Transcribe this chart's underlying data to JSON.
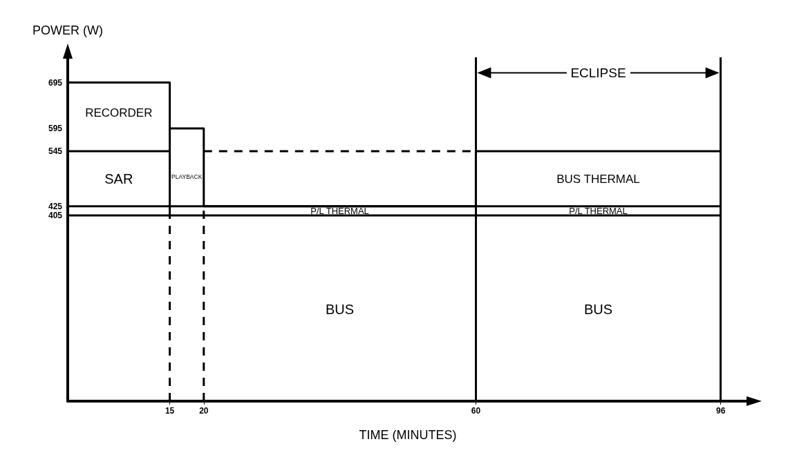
{
  "chart_data": {
    "type": "line",
    "xlabel": "TIME (MINUTES)",
    "ylabel": "POWER (W)",
    "xlim": [
      0,
      100
    ],
    "xticks": [
      15,
      20,
      60,
      96
    ],
    "ylim": [
      0,
      750
    ],
    "yticks": [
      405,
      425,
      545,
      595,
      695
    ],
    "grid": false,
    "marker": "none",
    "series": [
      {
        "type": "step",
        "color": "#000000",
        "x": [
          0,
          15,
          20,
          60,
          96
        ],
        "values": [
          695,
          595,
          425,
          545,
          545
        ]
      },
      {
        "type": "line",
        "color": "#000000",
        "x": [
          15,
          15
        ],
        "values": [
          405,
          595
        ]
      },
      {
        "type": "line",
        "color": "#000000",
        "x": [
          0,
          15
        ],
        "values": [
          545,
          545
        ]
      },
      {
        "type": "line",
        "color": "#000000",
        "x": [
          0,
          96
        ],
        "values": [
          425,
          425
        ]
      },
      {
        "type": "line",
        "color": "#000000",
        "x": [
          0,
          96
        ],
        "values": [
          405,
          405
        ]
      },
      {
        "type": "line",
        "color": "#000000",
        "line_style": "dashed",
        "x": [
          20,
          60
        ],
        "values": [
          545,
          545
        ]
      },
      {
        "type": "line",
        "color": "#000000",
        "line_style": "dashed",
        "x": [
          15,
          15
        ],
        "values": [
          0,
          405
        ]
      },
      {
        "type": "line",
        "color": "#000000",
        "line_style": "dashed",
        "x": [
          20,
          20
        ],
        "values": [
          0,
          425
        ]
      }
    ],
    "ref_lines": [
      {
        "axis": "x",
        "value": 60,
        "color": "#000000"
      },
      {
        "axis": "x",
        "value": 96,
        "color": "#000000"
      }
    ],
    "annotations": [
      "RECORDER",
      "SAR",
      "PLAYBACK",
      "P/L THERMAL",
      "BUS THERMAL",
      "P/L THERMAL",
      "BUS",
      "BUS",
      "ECLIPSE"
    ]
  }
}
